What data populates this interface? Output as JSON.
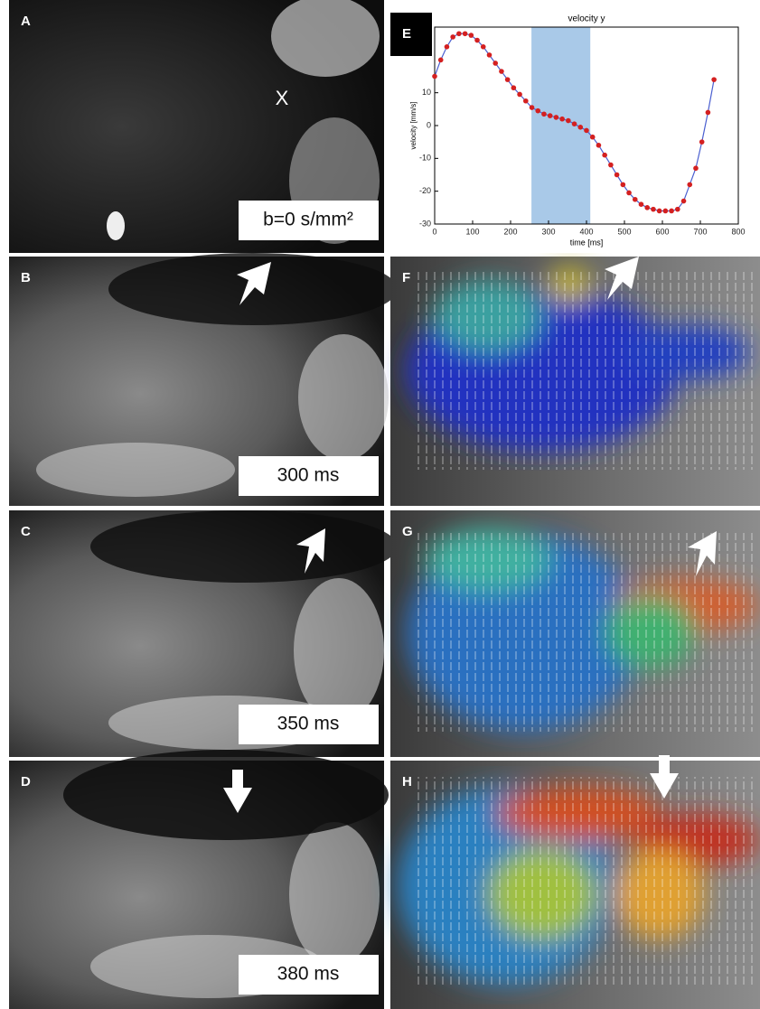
{
  "panels": [
    {
      "label": "A",
      "caption": "b=0 s/mm²"
    },
    {
      "label": "B",
      "caption": "300 ms"
    },
    {
      "label": "C",
      "caption": "350 ms"
    },
    {
      "label": "D",
      "caption": "380 ms"
    },
    {
      "label": "E"
    },
    {
      "label": "F"
    },
    {
      "label": "G"
    },
    {
      "label": "H"
    }
  ],
  "marker": "X",
  "chart_data": {
    "type": "line",
    "title": "velocity y",
    "x_label": "time [ms]",
    "y_label": "velocity [mm/s]",
    "x": [
      0,
      16,
      32,
      48,
      64,
      80,
      96,
      112,
      128,
      144,
      160,
      176,
      192,
      208,
      224,
      240,
      256,
      272,
      288,
      304,
      320,
      336,
      352,
      368,
      384,
      400,
      416,
      432,
      448,
      464,
      480,
      496,
      512,
      528,
      544,
      560,
      576,
      592,
      608,
      624,
      640,
      656,
      672,
      688,
      704,
      720,
      736
    ],
    "values": [
      15,
      20,
      24,
      27,
      28,
      28,
      27.5,
      26,
      24,
      21.5,
      19,
      16.5,
      14,
      11.5,
      9.5,
      7.5,
      5.5,
      4.5,
      3.5,
      3,
      2.5,
      2,
      1.5,
      0.5,
      -0.5,
      -1.5,
      -3.5,
      -6,
      -9,
      -12,
      -15,
      -18,
      -20.5,
      -22.5,
      -24,
      -25,
      -25.5,
      -26,
      -26,
      -26,
      -25.5,
      -23,
      -18,
      -13,
      -5,
      4,
      14
    ],
    "color": "#4a5fd0",
    "marker_color": "#d42020",
    "highlight": [
      255,
      410
    ],
    "highlight_color": "#a9c9e8",
    "xlim": [
      0,
      800
    ],
    "ylim": [
      -30,
      30
    ],
    "xticks": [
      0,
      100,
      200,
      300,
      400,
      500,
      600,
      700,
      800
    ],
    "yticks": [
      -30,
      -20,
      -10,
      0,
      10
    ]
  }
}
